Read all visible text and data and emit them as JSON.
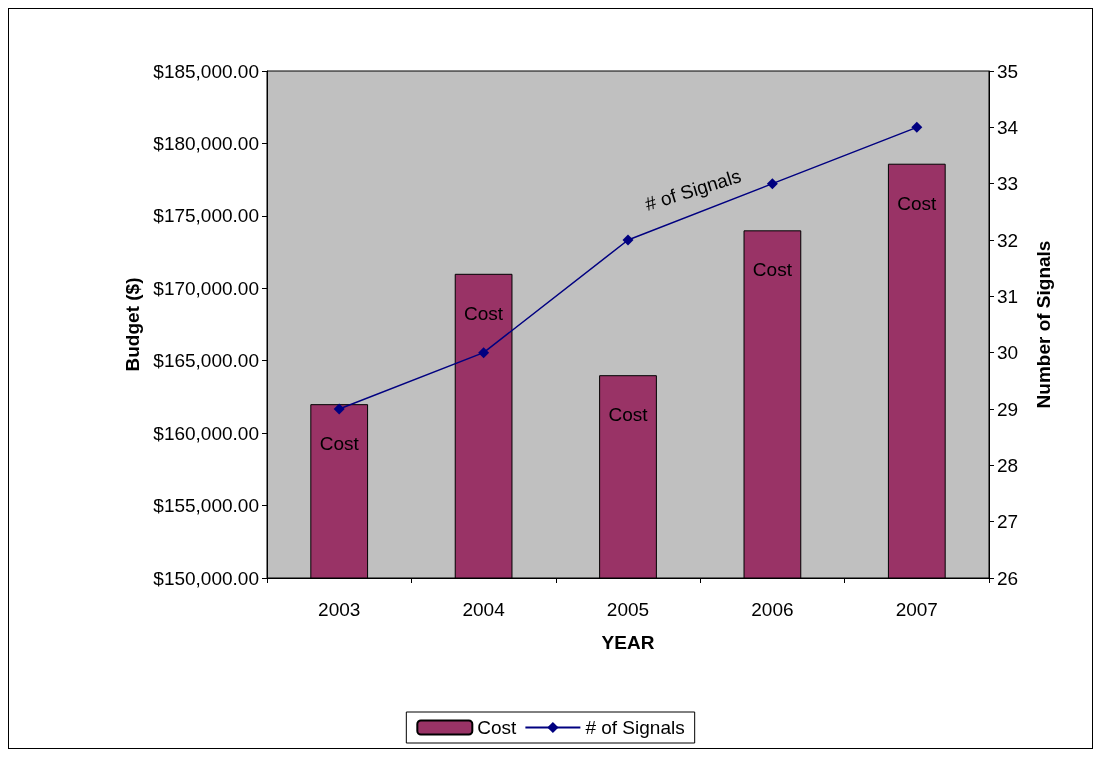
{
  "chart_data": {
    "type": "bar",
    "xlabel": "YEAR",
    "ylabel": "Budget ($)",
    "y2label": "Number of Signals",
    "categories": [
      "2003",
      "2004",
      "2005",
      "2006",
      "2007"
    ],
    "series": [
      {
        "name": "Cost",
        "color": "#993366",
        "values": [
          162000,
          171000,
          164000,
          174000,
          178600
        ],
        "value_labels": [
          "Cost",
          "Cost",
          "Cost",
          "Cost",
          "Cost"
        ]
      },
      {
        "name": "# of Signals",
        "type": "line",
        "axis": "y2",
        "color": "#000080",
        "values": [
          29,
          30,
          32,
          33,
          34
        ],
        "marker": "diamond"
      }
    ],
    "annotations": [
      "# of Signals"
    ],
    "ylim": [
      150000,
      185000
    ],
    "yticks": [
      {
        "value": 150000,
        "label": "$150,000.00"
      },
      {
        "value": 155000,
        "label": "$155,000.00"
      },
      {
        "value": 160000,
        "label": "$160,000.00"
      },
      {
        "value": 165000,
        "label": "$165,000.00"
      },
      {
        "value": 170000,
        "label": "$170,000.00"
      },
      {
        "value": 175000,
        "label": "$175,000.00"
      },
      {
        "value": 180000,
        "label": "$180,000.00"
      },
      {
        "value": 185000,
        "label": "$185,000.00"
      }
    ],
    "y2lim": [
      26,
      35
    ],
    "y2ticks": [
      26,
      27,
      28,
      29,
      30,
      31,
      32,
      33,
      34,
      35
    ],
    "grid": false,
    "legend": "bottom"
  }
}
